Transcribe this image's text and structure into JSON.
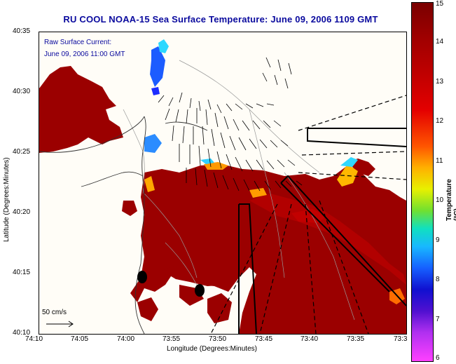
{
  "title": "RU COOL  NOAA-15  Sea Surface Temperature:  June 09, 2006 1109 GMT",
  "annotation": {
    "line1": "Raw Surface Current:",
    "line2": "June 09, 2006 11:00 GMT"
  },
  "scale_label": "50 cm/s",
  "axes": {
    "xlabel": "Longitude (Degrees:Minutes)",
    "ylabel": "Latitude (Degrees:Minutes)",
    "xticks": [
      "74:10",
      "74:05",
      "74:00",
      "73:55",
      "73:50",
      "73:45",
      "73:40",
      "73:35",
      "73:3"
    ],
    "yticks": [
      "40:35",
      "40:30",
      "40:25",
      "40:20",
      "40:15",
      "40:10"
    ]
  },
  "colorbar": {
    "label": "Temperature (°C)",
    "ticks": [
      "15",
      "14",
      "13",
      "12",
      "11",
      "10",
      "9",
      "8",
      "7",
      "6"
    ]
  },
  "colors": {
    "sst_warm": "#9b0000",
    "sst_hot": "#c01010",
    "title": "#0a0a9e",
    "land": "#fffdf4"
  }
}
